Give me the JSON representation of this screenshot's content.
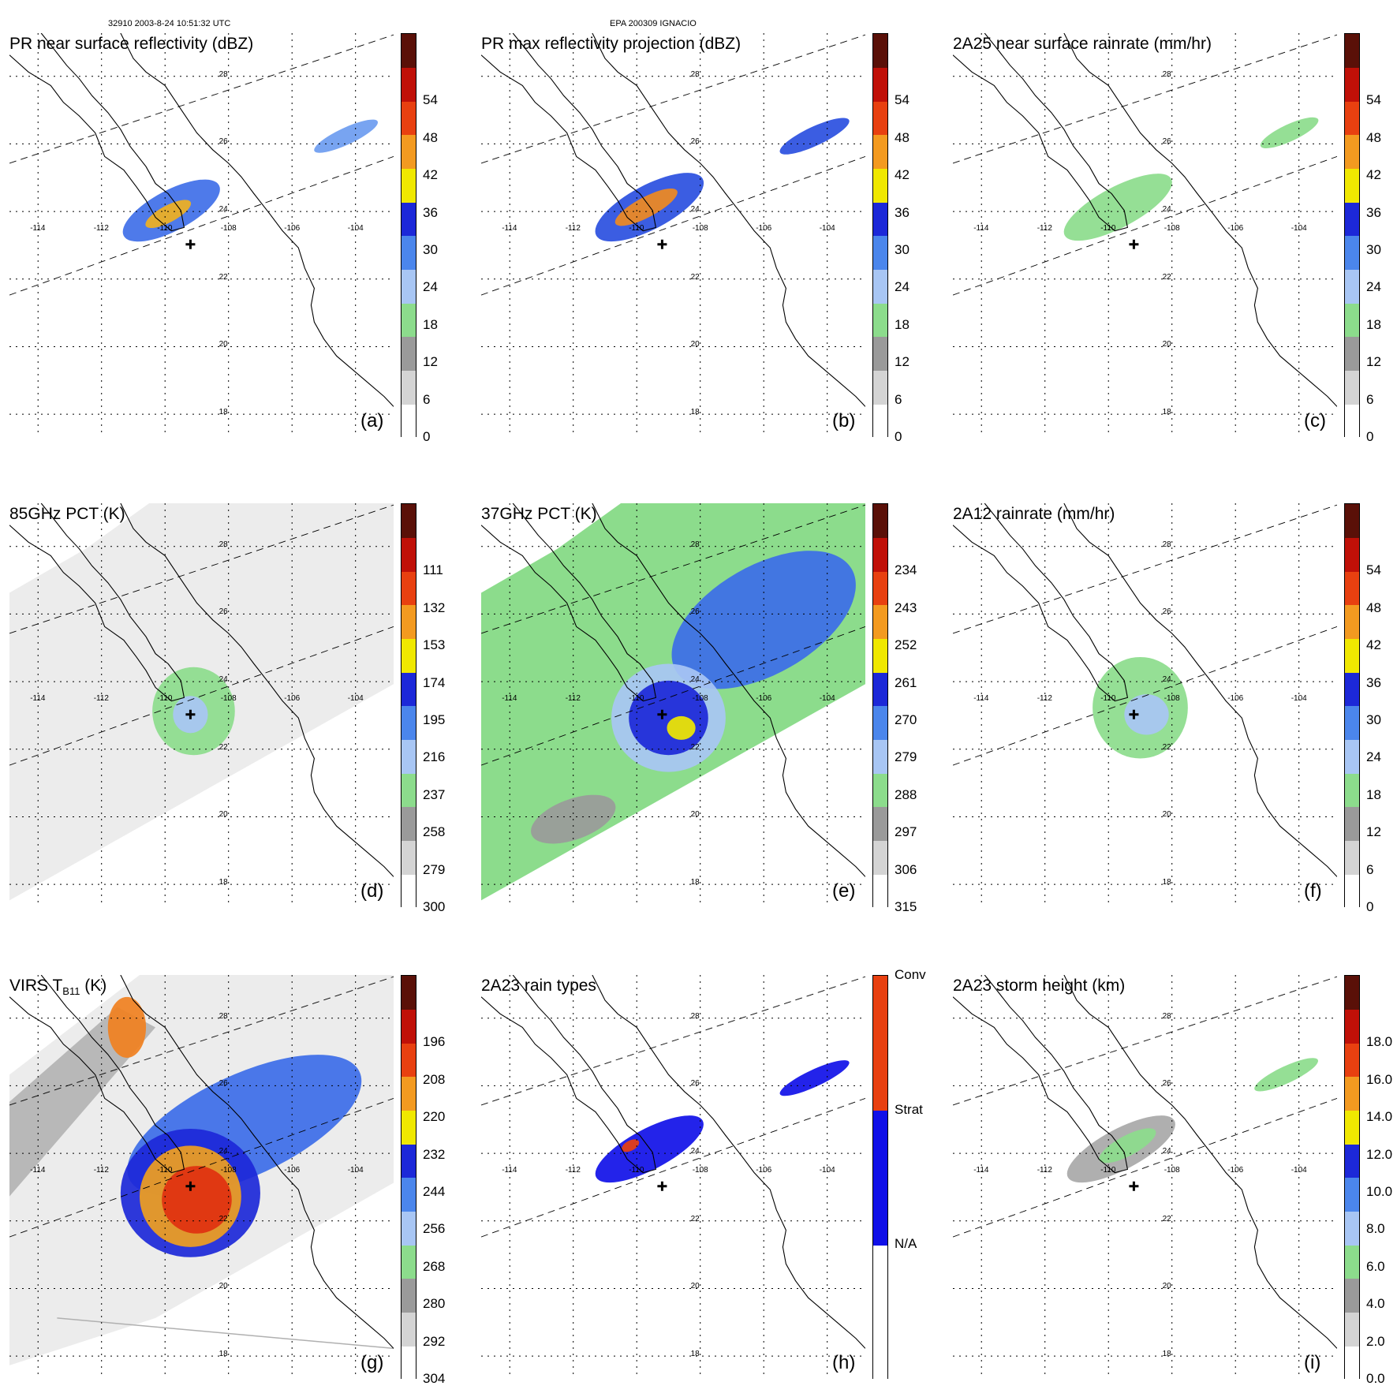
{
  "header": {
    "left": "32910 2003-8-24 10:51:32 UTC",
    "center": "EPA 200309 IGNACIO"
  },
  "chart_data": [
    {
      "type": "heatmap",
      "id": "a",
      "title": "PR near surface reflectivity (dBZ)",
      "panel_label": "(a)",
      "colorbar": {
        "ticks": [
          "0",
          "6",
          "12",
          "18",
          "24",
          "30",
          "36",
          "42",
          "48",
          "54"
        ]
      },
      "lon_ticks": [
        "-114",
        "-112",
        "-110",
        "-108",
        "-106",
        "-104"
      ],
      "lat_ticks": [
        "28",
        "26",
        "24",
        "22",
        "20",
        "18"
      ],
      "storm_center": {
        "lon": -109.2,
        "lat": 22.7
      },
      "swath": "pr",
      "features": [
        {
          "lon": -109.8,
          "lat": 23.7,
          "rlon": 1.7,
          "rlat": 0.6,
          "rot": -28,
          "color": "#3f6fe8"
        },
        {
          "lon": -109.9,
          "lat": 23.6,
          "rlon": 0.8,
          "rlat": 0.25,
          "rot": -28,
          "color": "#f0b020"
        },
        {
          "lon": -104.3,
          "lat": 25.9,
          "rlon": 1.1,
          "rlat": 0.25,
          "rot": -25,
          "color": "#6c9cf0"
        }
      ]
    },
    {
      "type": "heatmap",
      "id": "b",
      "title": "PR max reflectivity projection (dBZ)",
      "panel_label": "(b)",
      "colorbar": {
        "ticks": [
          "0",
          "6",
          "12",
          "18",
          "24",
          "30",
          "36",
          "42",
          "48",
          "54"
        ]
      },
      "lon_ticks": [
        "-114",
        "-112",
        "-110",
        "-108",
        "-106",
        "-104"
      ],
      "lat_ticks": [
        "28",
        "26",
        "24",
        "22",
        "20",
        "18"
      ],
      "storm_center": {
        "lon": -109.2,
        "lat": 22.7
      },
      "swath": "pr",
      "features": [
        {
          "lon": -109.6,
          "lat": 23.8,
          "rlon": 1.9,
          "rlat": 0.65,
          "rot": -28,
          "color": "#2a4fe0"
        },
        {
          "lon": -109.7,
          "lat": 23.8,
          "rlon": 1.1,
          "rlat": 0.3,
          "rot": -28,
          "color": "#f08a20"
        },
        {
          "lon": -104.4,
          "lat": 25.9,
          "rlon": 1.2,
          "rlat": 0.28,
          "rot": -25,
          "color": "#2a4fe0"
        }
      ]
    },
    {
      "type": "heatmap",
      "id": "c",
      "title": "2A25 near surface rainrate (mm/hr)",
      "panel_label": "(c)",
      "colorbar": {
        "ticks": [
          "0",
          "6",
          "12",
          "18",
          "24",
          "30",
          "36",
          "42",
          "48",
          "54"
        ]
      },
      "lon_ticks": [
        "-114",
        "-112",
        "-110",
        "-108",
        "-106",
        "-104"
      ],
      "lat_ticks": [
        "28",
        "26",
        "24",
        "22",
        "20",
        "18"
      ],
      "storm_center": {
        "lon": -109.2,
        "lat": 22.7
      },
      "swath": "pr",
      "features": [
        {
          "lon": -109.7,
          "lat": 23.8,
          "rlon": 1.9,
          "rlat": 0.6,
          "rot": -28,
          "color": "#8cdc8c"
        },
        {
          "lon": -104.3,
          "lat": 26.0,
          "rlon": 1.0,
          "rlat": 0.25,
          "rot": -25,
          "color": "#8cdc8c"
        }
      ]
    },
    {
      "type": "heatmap",
      "id": "d",
      "title": "85GHz PCT (K)",
      "panel_label": "(d)",
      "colorbar": {
        "ticks": [
          "300",
          "279",
          "258",
          "237",
          "216",
          "195",
          "174",
          "153",
          "132",
          "111"
        ]
      },
      "lon_ticks": [
        "-114",
        "-112",
        "-110",
        "-108",
        "-106",
        "-104"
      ],
      "lat_ticks": [
        "28",
        "26",
        "24",
        "22",
        "20",
        "18"
      ],
      "storm_center": {
        "lon": -109.2,
        "lat": 22.7
      },
      "swath": "tmi",
      "features": [
        {
          "lon": -109.1,
          "lat": 22.8,
          "rlon": 1.3,
          "rlat": 1.3,
          "rot": 0,
          "color": "#8cdc8c"
        },
        {
          "lon": -109.2,
          "lat": 22.7,
          "rlon": 0.55,
          "rlat": 0.55,
          "rot": 0,
          "color": "#a8c6f4"
        }
      ]
    },
    {
      "type": "heatmap",
      "id": "e",
      "title": "37GHz PCT (K)",
      "panel_label": "(e)",
      "colorbar": {
        "ticks": [
          "315",
          "306",
          "297",
          "288",
          "279",
          "270",
          "261",
          "252",
          "243",
          "234"
        ]
      },
      "lon_ticks": [
        "-114",
        "-112",
        "-110",
        "-108",
        "-106",
        "-104"
      ],
      "lat_ticks": [
        "28",
        "26",
        "24",
        "22",
        "20",
        "18"
      ],
      "storm_center": {
        "lon": -109.2,
        "lat": 22.7
      },
      "swath": "tmi",
      "features": [
        {
          "lon": -106.0,
          "lat": 25.5,
          "rlon": 3.2,
          "rlat": 1.6,
          "rot": -30,
          "color": "#3c6ce8"
        },
        {
          "lon": -109.0,
          "lat": 22.6,
          "rlon": 1.8,
          "rlat": 1.6,
          "rot": 0,
          "color": "#a8c6f4"
        },
        {
          "lon": -109.0,
          "lat": 22.6,
          "rlon": 1.25,
          "rlat": 1.1,
          "rot": 0,
          "color": "#1c28d8"
        },
        {
          "lon": -108.6,
          "lat": 22.3,
          "rlon": 0.45,
          "rlat": 0.35,
          "rot": 0,
          "color": "#f0e800"
        },
        {
          "lon": -112.0,
          "lat": 19.6,
          "rlon": 1.4,
          "rlat": 0.6,
          "rot": -20,
          "color": "#9a9a9a"
        }
      ]
    },
    {
      "type": "heatmap",
      "id": "f",
      "title": "2A12 rainrate (mm/hr)",
      "panel_label": "(f)",
      "colorbar": {
        "ticks": [
          "0",
          "6",
          "12",
          "18",
          "24",
          "30",
          "36",
          "42",
          "48",
          "54"
        ]
      },
      "lon_ticks": [
        "-114",
        "-112",
        "-110",
        "-108",
        "-106",
        "-104"
      ],
      "lat_ticks": [
        "28",
        "26",
        "24",
        "22",
        "20",
        "18"
      ],
      "storm_center": {
        "lon": -109.2,
        "lat": 22.7
      },
      "swath": "none",
      "features": [
        {
          "lon": -109.0,
          "lat": 22.9,
          "rlon": 1.5,
          "rlat": 1.5,
          "rot": 0,
          "color": "#8cdc8c"
        },
        {
          "lon": -108.8,
          "lat": 22.7,
          "rlon": 0.7,
          "rlat": 0.6,
          "rot": 0,
          "color": "#a8c6f4"
        }
      ]
    },
    {
      "type": "heatmap",
      "id": "g",
      "title": "VIRS T",
      "title_sub": "B11",
      "title_end": " (K)",
      "panel_label": "(g)",
      "colorbar": {
        "ticks": [
          "304",
          "292",
          "280",
          "268",
          "256",
          "244",
          "232",
          "220",
          "208",
          "196"
        ]
      },
      "lon_ticks": [
        "-114",
        "-112",
        "-110",
        "-108",
        "-106",
        "-104"
      ],
      "lat_ticks": [
        "28",
        "26",
        "24",
        "22",
        "20",
        "18"
      ],
      "storm_center": {
        "lon": -109.2,
        "lat": 22.7
      },
      "swath": "virs",
      "features": [
        {
          "lon": -107.5,
          "lat": 24.5,
          "rlon": 4.0,
          "rlat": 1.5,
          "rot": -25,
          "color": "#3c6ce8"
        },
        {
          "lon": -109.2,
          "lat": 22.5,
          "rlon": 2.2,
          "rlat": 1.9,
          "rot": 0,
          "color": "#1c28d8"
        },
        {
          "lon": -109.2,
          "lat": 22.4,
          "rlon": 1.6,
          "rlat": 1.5,
          "rot": 0,
          "color": "#f0a020"
        },
        {
          "lon": -109.0,
          "lat": 22.3,
          "rlon": 1.1,
          "rlat": 1.0,
          "rot": 0,
          "color": "#e03010"
        },
        {
          "lon": -111.2,
          "lat": 27.4,
          "rlon": 0.6,
          "rlat": 0.9,
          "rot": 0,
          "color": "#f08020"
        }
      ]
    },
    {
      "type": "heatmap",
      "id": "h",
      "title": "2A23 rain types",
      "panel_label": "(h)",
      "colorbar": {
        "ticks": [
          "N/A",
          "Strat",
          "Conv"
        ]
      },
      "lon_ticks": [
        "-114",
        "-112",
        "-110",
        "-108",
        "-106",
        "-104"
      ],
      "lat_ticks": [
        "28",
        "26",
        "24",
        "22",
        "20",
        "18"
      ],
      "storm_center": {
        "lon": -109.2,
        "lat": 22.7
      },
      "swath": "pr",
      "features": [
        {
          "lon": -109.6,
          "lat": 23.8,
          "rlon": 1.9,
          "rlat": 0.6,
          "rot": -28,
          "color": "#1010e8"
        },
        {
          "lon": -104.4,
          "lat": 25.9,
          "rlon": 1.2,
          "rlat": 0.25,
          "rot": -25,
          "color": "#1010e8"
        },
        {
          "lon": -110.2,
          "lat": 23.9,
          "rlon": 0.3,
          "rlat": 0.15,
          "rot": -28,
          "color": "#e84010"
        }
      ]
    },
    {
      "type": "heatmap",
      "id": "i",
      "title": "2A23 storm height (km)",
      "panel_label": "(i)",
      "colorbar": {
        "ticks": [
          "0.0",
          "2.0",
          "4.0",
          "6.0",
          "8.0",
          "10.0",
          "12.0",
          "14.0",
          "16.0",
          "18.0"
        ]
      },
      "lon_ticks": [
        "-114",
        "-112",
        "-110",
        "-108",
        "-106",
        "-104"
      ],
      "lat_ticks": [
        "28",
        "26",
        "24",
        "22",
        "20",
        "18"
      ],
      "storm_center": {
        "lon": -109.2,
        "lat": 22.7
      },
      "swath": "pr",
      "features": [
        {
          "lon": -109.6,
          "lat": 23.8,
          "rlon": 1.9,
          "rlat": 0.6,
          "rot": -28,
          "color": "#a8a8a8"
        },
        {
          "lon": -109.4,
          "lat": 23.9,
          "rlon": 1.0,
          "rlat": 0.3,
          "rot": -28,
          "color": "#8cdc8c"
        },
        {
          "lon": -104.4,
          "lat": 26.0,
          "rlon": 1.1,
          "rlat": 0.25,
          "rot": -25,
          "color": "#8cdc8c"
        }
      ]
    }
  ],
  "colormaps": {
    "standard": [
      "#ffffff",
      "#d4d4d4",
      "#9a9a9a",
      "#8cdc8c",
      "#a8c6f4",
      "#4b86ec",
      "#1c28d8",
      "#f0e800",
      "#f39a20",
      "#e84010",
      "#c01008",
      "#5a1008"
    ],
    "tb": [
      "#ffffff",
      "#d4d4d4",
      "#9a9a9a",
      "#8cdc8c",
      "#a8c6f4",
      "#4b86ec",
      "#1c28d8",
      "#f0e800",
      "#f39a20",
      "#e84010",
      "#c01008",
      "#5a1008"
    ],
    "raintype": [
      "#ffffff",
      "#1010e8",
      "#e84010"
    ]
  }
}
